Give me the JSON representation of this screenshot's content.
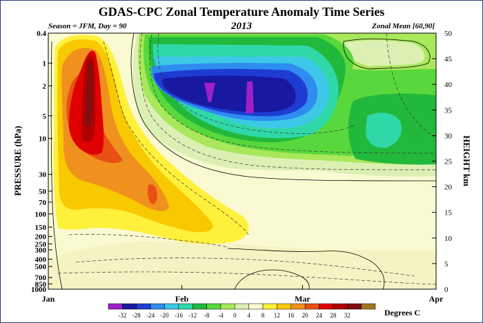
{
  "chart_data": {
    "type": "heatmap",
    "title": "GDAS-CPC Zonal Temperature Anomaly Time Series",
    "subtitle_left": "Season = JFM, Day =  90",
    "subtitle_center": "2013",
    "subtitle_right": "Zonal Mean [60,90]",
    "ylabel_left": "PRESSURE (hPa)",
    "ylabel_right": "HEIGHT  km",
    "x_axis": {
      "type": "time",
      "ticks": [
        "Jan",
        "Feb",
        "Mar",
        "Apr"
      ],
      "tick_days": [
        0,
        31,
        59,
        90
      ],
      "range_days": [
        0,
        90
      ]
    },
    "y_left_axis": {
      "scale": "log",
      "ticks": [
        "0.4",
        "1",
        "2",
        "5",
        "10",
        "30",
        "50",
        "70",
        "100",
        "150",
        "200",
        "250",
        "300",
        "400",
        "500",
        "700",
        "850",
        "1000"
      ],
      "tick_values": [
        0.4,
        1,
        2,
        5,
        10,
        30,
        50,
        70,
        100,
        150,
        200,
        250,
        300,
        400,
        500,
        700,
        850,
        1000
      ],
      "range_hpa": [
        0.4,
        1000
      ]
    },
    "y_right_axis": {
      "ticks": [
        "0",
        "5",
        "10",
        "15",
        "20",
        "25",
        "30",
        "35",
        "40",
        "45",
        "50"
      ],
      "tick_values": [
        0,
        5,
        10,
        15,
        20,
        25,
        30,
        35,
        40,
        45,
        50
      ],
      "range_km": [
        0,
        50
      ]
    },
    "legend": {
      "placement": "bottom",
      "label": "Degrees C",
      "levels": [
        "-32",
        "-28",
        "-24",
        "-20",
        "-16",
        "-12",
        "-8",
        "-4",
        "0",
        "4",
        "8",
        "12",
        "16",
        "20",
        "24",
        "28",
        "32"
      ],
      "colors": [
        "#a020c8",
        "#1818a0",
        "#1e3cd2",
        "#2f8cf0",
        "#3cc8e6",
        "#30d8a8",
        "#22b83c",
        "#58d83c",
        "#a8e85a",
        "#dcf0b4",
        "#fafad2",
        "#fff03c",
        "#f8c800",
        "#f0901e",
        "#e85014",
        "#e00000",
        "#b00000",
        "#801010",
        "#a07820"
      ]
    },
    "grid": false
  }
}
